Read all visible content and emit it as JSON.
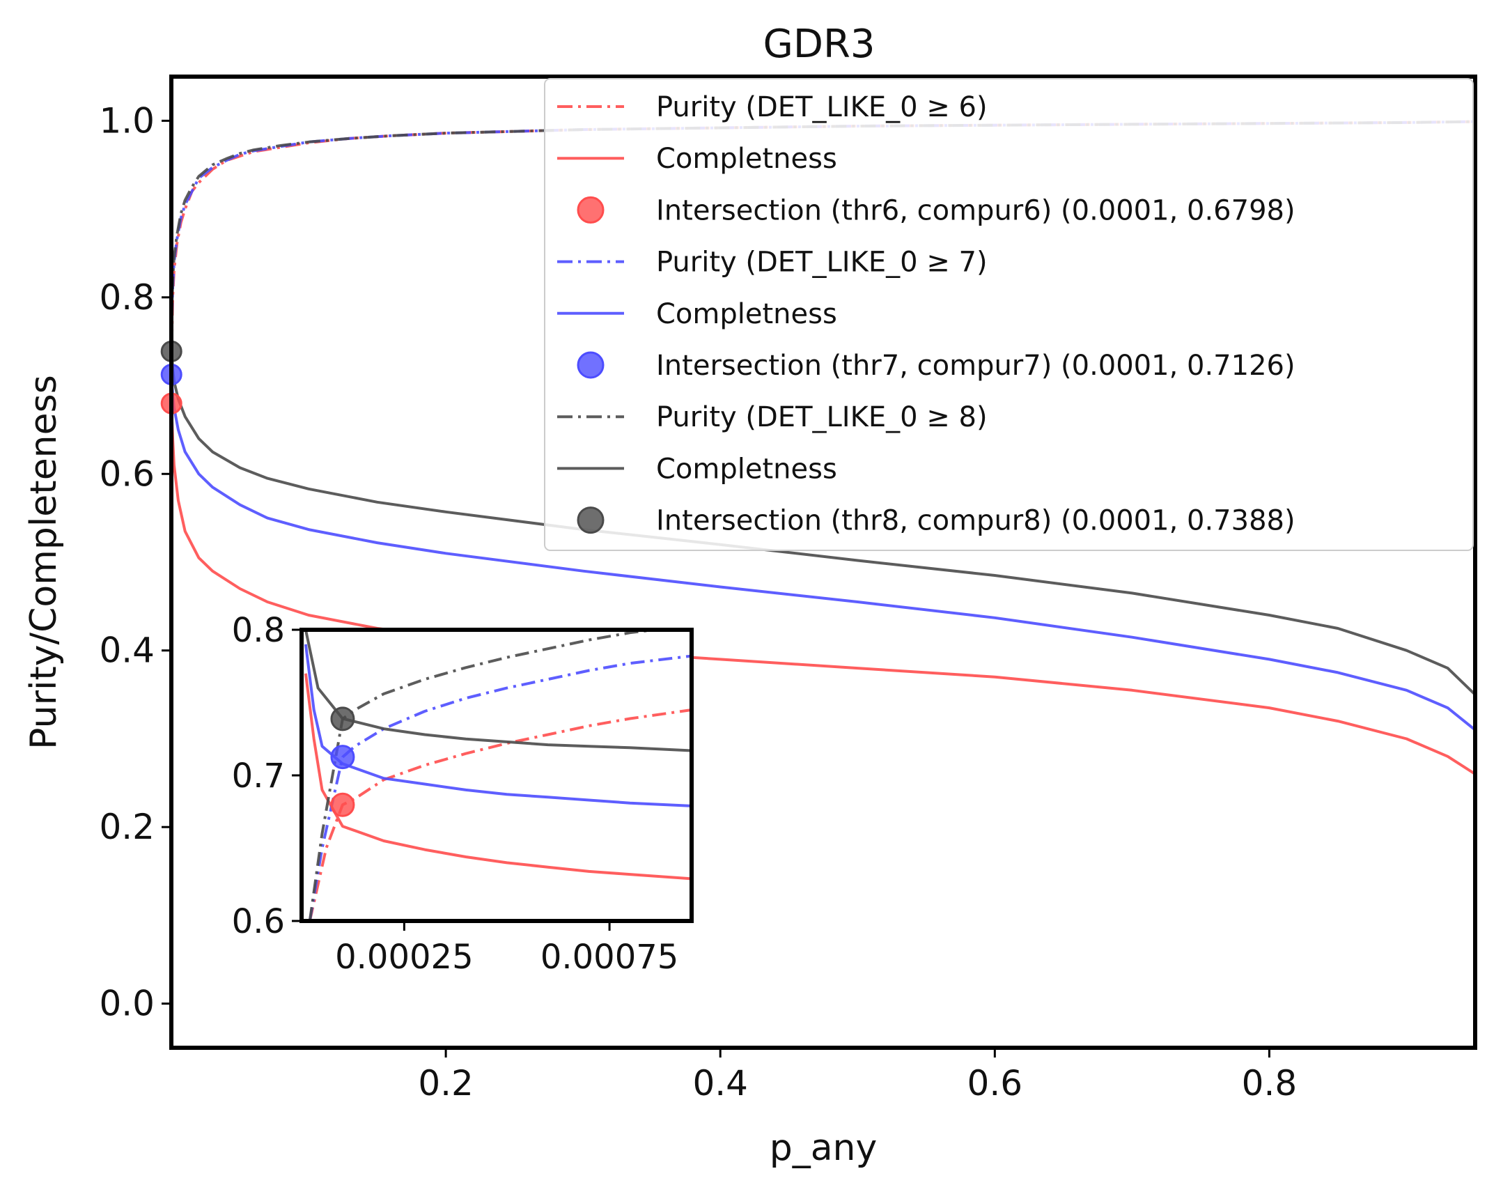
{
  "chart_data": {
    "type": "line",
    "title": "GDR3",
    "xlabel": "p_any",
    "ylabel": "Purity/Completeness",
    "xlim": [
      0.0,
      0.95
    ],
    "ylim": [
      -0.05,
      1.05
    ],
    "xticks": [
      0.2,
      0.4,
      0.6,
      0.8
    ],
    "xtick_labels": [
      "0.2",
      "0.4",
      "0.6",
      "0.8"
    ],
    "yticks": [
      0.0,
      0.2,
      0.4,
      0.6,
      0.8,
      1.0
    ],
    "ytick_labels": [
      "0.0",
      "0.2",
      "0.4",
      "0.6",
      "0.8",
      "1.0"
    ],
    "grid": false,
    "legend_position": "top-right",
    "colors": {
      "thr6": "#ff4d4d",
      "thr7": "#4d4dff",
      "thr8": "#4a4a4a"
    },
    "series": [
      {
        "name": "Purity (DET_LIKE_0 ≥ 6)",
        "group": "thr6",
        "style": "dashdot",
        "x": [
          0.0001,
          0.0003,
          0.0006,
          0.001,
          0.002,
          0.004,
          0.007,
          0.01,
          0.015,
          0.02,
          0.03,
          0.04,
          0.05,
          0.06,
          0.08,
          0.1,
          0.13,
          0.16,
          0.2,
          0.25,
          0.3,
          0.4,
          0.5,
          0.6,
          0.7,
          0.8,
          0.9,
          0.95
        ],
        "y": [
          0.68,
          0.74,
          0.77,
          0.8,
          0.83,
          0.86,
          0.885,
          0.9,
          0.92,
          0.93,
          0.945,
          0.955,
          0.96,
          0.965,
          0.97,
          0.975,
          0.98,
          0.983,
          0.986,
          0.988,
          0.99,
          0.992,
          0.994,
          0.995,
          0.996,
          0.997,
          0.998,
          0.999
        ]
      },
      {
        "name": "Completness",
        "group": "thr6",
        "style": "solid",
        "x": [
          0.0,
          0.001,
          0.002,
          0.005,
          0.01,
          0.02,
          0.03,
          0.05,
          0.07,
          0.1,
          0.15,
          0.2,
          0.3,
          0.4,
          0.5,
          0.6,
          0.7,
          0.8,
          0.85,
          0.9,
          0.93,
          0.95
        ],
        "y": [
          0.68,
          0.64,
          0.61,
          0.57,
          0.535,
          0.505,
          0.49,
          0.47,
          0.455,
          0.44,
          0.425,
          0.415,
          0.4,
          0.39,
          0.38,
          0.37,
          0.355,
          0.335,
          0.32,
          0.3,
          0.28,
          0.26
        ]
      },
      {
        "name": "Purity (DET_LIKE_0 ≥ 7)",
        "group": "thr7",
        "style": "dashdot",
        "x": [
          0.0001,
          0.0003,
          0.0006,
          0.001,
          0.002,
          0.004,
          0.007,
          0.01,
          0.015,
          0.02,
          0.03,
          0.04,
          0.05,
          0.06,
          0.08,
          0.1,
          0.13,
          0.16,
          0.2,
          0.25,
          0.3,
          0.4,
          0.5,
          0.6,
          0.7,
          0.8,
          0.9,
          0.95
        ],
        "y": [
          0.71,
          0.76,
          0.79,
          0.81,
          0.84,
          0.865,
          0.89,
          0.905,
          0.92,
          0.935,
          0.947,
          0.955,
          0.962,
          0.966,
          0.971,
          0.976,
          0.98,
          0.983,
          0.986,
          0.988,
          0.99,
          0.992,
          0.994,
          0.995,
          0.996,
          0.997,
          0.998,
          0.999
        ]
      },
      {
        "name": "Completness",
        "group": "thr7",
        "style": "solid",
        "x": [
          0.0,
          0.001,
          0.002,
          0.005,
          0.01,
          0.02,
          0.03,
          0.05,
          0.07,
          0.1,
          0.15,
          0.2,
          0.3,
          0.4,
          0.5,
          0.6,
          0.7,
          0.8,
          0.85,
          0.9,
          0.93,
          0.95
        ],
        "y": [
          0.71,
          0.69,
          0.675,
          0.65,
          0.625,
          0.6,
          0.585,
          0.565,
          0.55,
          0.537,
          0.522,
          0.51,
          0.49,
          0.472,
          0.455,
          0.437,
          0.415,
          0.39,
          0.375,
          0.355,
          0.335,
          0.31
        ]
      },
      {
        "name": "Purity (DET_LIKE_0 ≥ 8)",
        "group": "thr8",
        "style": "dashdot",
        "x": [
          0.0001,
          0.0003,
          0.0006,
          0.001,
          0.002,
          0.004,
          0.007,
          0.01,
          0.015,
          0.02,
          0.03,
          0.04,
          0.05,
          0.06,
          0.08,
          0.1,
          0.13,
          0.16,
          0.2,
          0.25,
          0.3,
          0.4,
          0.5,
          0.6,
          0.7,
          0.8,
          0.9,
          0.95
        ],
        "y": [
          0.74,
          0.77,
          0.8,
          0.82,
          0.845,
          0.87,
          0.895,
          0.91,
          0.925,
          0.937,
          0.95,
          0.957,
          0.963,
          0.967,
          0.972,
          0.976,
          0.98,
          0.983,
          0.986,
          0.988,
          0.99,
          0.992,
          0.994,
          0.995,
          0.996,
          0.997,
          0.998,
          0.999
        ]
      },
      {
        "name": "Completness",
        "group": "thr8",
        "style": "solid",
        "x": [
          0.0,
          0.001,
          0.002,
          0.005,
          0.01,
          0.02,
          0.03,
          0.05,
          0.07,
          0.1,
          0.15,
          0.2,
          0.3,
          0.4,
          0.5,
          0.6,
          0.7,
          0.8,
          0.85,
          0.9,
          0.93,
          0.95
        ],
        "y": [
          0.74,
          0.72,
          0.705,
          0.685,
          0.665,
          0.64,
          0.625,
          0.607,
          0.595,
          0.583,
          0.568,
          0.557,
          0.537,
          0.52,
          0.502,
          0.485,
          0.465,
          0.44,
          0.425,
          0.4,
          0.38,
          0.35
        ]
      }
    ],
    "intersections": [
      {
        "name": "Intersection (thr6, compur6) (0.0001, 0.6798)",
        "group": "thr6",
        "x": 0.0001,
        "y": 0.6798
      },
      {
        "name": "Intersection (thr7, compur7) (0.0001, 0.7126)",
        "group": "thr7",
        "x": 0.0001,
        "y": 0.7126
      },
      {
        "name": "Intersection (thr8, compur8) (0.0001, 0.7388)",
        "group": "thr8",
        "x": 0.0001,
        "y": 0.7388
      }
    ],
    "legend": [
      {
        "label": "Purity (DET_LIKE_0 ≥ 6)",
        "group": "thr6",
        "kind": "dashdot"
      },
      {
        "label": "Completness",
        "group": "thr6",
        "kind": "solid"
      },
      {
        "label": "Intersection (thr6, compur6) (0.0001, 0.6798)",
        "group": "thr6",
        "kind": "marker"
      },
      {
        "label": "Purity (DET_LIKE_0 ≥ 7)",
        "group": "thr7",
        "kind": "dashdot"
      },
      {
        "label": "Completness",
        "group": "thr7",
        "kind": "solid"
      },
      {
        "label": "Intersection (thr7, compur7) (0.0001, 0.7126)",
        "group": "thr7",
        "kind": "marker"
      },
      {
        "label": "Purity (DET_LIKE_0 ≥ 8)",
        "group": "thr8",
        "kind": "dashdot"
      },
      {
        "label": "Completness",
        "group": "thr8",
        "kind": "solid"
      },
      {
        "label": "Intersection (thr8, compur8) (0.0001, 0.7388)",
        "group": "thr8",
        "kind": "marker"
      }
    ],
    "inset": {
      "xlim": [
        0.0,
        0.00095
      ],
      "ylim": [
        0.6,
        0.8
      ],
      "xticks": [
        0.00025,
        0.00075
      ],
      "xtick_labels": [
        "0.00025",
        "0.00075"
      ],
      "yticks": [
        0.6,
        0.7,
        0.8
      ],
      "ytick_labels": [
        "0.6",
        "0.7",
        "0.8"
      ],
      "series": [
        {
          "group": "thr6",
          "style": "dashdot",
          "x": [
            2e-05,
            6e-05,
            0.0001,
            0.00013,
            0.0002,
            0.0003,
            0.0004,
            0.0005,
            0.0006,
            0.0007,
            0.0008,
            0.00095
          ],
          "y": [
            0.6,
            0.65,
            0.6798,
            0.684,
            0.697,
            0.707,
            0.715,
            0.722,
            0.728,
            0.734,
            0.739,
            0.745
          ]
        },
        {
          "group": "thr6",
          "style": "solid",
          "x": [
            1e-05,
            3e-05,
            5e-05,
            0.0001,
            0.0002,
            0.0003,
            0.0004,
            0.0005,
            0.0006,
            0.0007,
            0.0008,
            0.00095
          ],
          "y": [
            0.77,
            0.725,
            0.69,
            0.665,
            0.655,
            0.649,
            0.644,
            0.64,
            0.637,
            0.634,
            0.632,
            0.629
          ]
        },
        {
          "group": "thr7",
          "style": "dashdot",
          "x": [
            2e-05,
            5e-05,
            0.0001,
            0.00013,
            0.0002,
            0.0003,
            0.0004,
            0.0005,
            0.0006,
            0.0007,
            0.0008,
            0.00095
          ],
          "y": [
            0.6,
            0.65,
            0.7126,
            0.72,
            0.732,
            0.744,
            0.753,
            0.76,
            0.766,
            0.772,
            0.777,
            0.782
          ]
        },
        {
          "group": "thr7",
          "style": "solid",
          "x": [
            1e-05,
            3e-05,
            5e-05,
            0.0001,
            0.0002,
            0.0003,
            0.0004,
            0.0005,
            0.0006,
            0.0007,
            0.0008,
            0.00095
          ],
          "y": [
            0.79,
            0.745,
            0.72,
            0.708,
            0.698,
            0.694,
            0.69,
            0.687,
            0.685,
            0.683,
            0.681,
            0.679
          ]
        },
        {
          "group": "thr8",
          "style": "dashdot",
          "x": [
            2e-05,
            5e-05,
            0.0001,
            0.00013,
            0.0002,
            0.0003,
            0.0004,
            0.0005,
            0.0006,
            0.0007,
            0.0008,
            0.00095
          ],
          "y": [
            0.6,
            0.66,
            0.7388,
            0.745,
            0.756,
            0.766,
            0.774,
            0.781,
            0.787,
            0.793,
            0.798,
            0.803
          ]
        },
        {
          "group": "thr8",
          "style": "solid",
          "x": [
            1e-05,
            4e-05,
            0.0001,
            0.0002,
            0.0003,
            0.0004,
            0.0005,
            0.0006,
            0.0007,
            0.0008,
            0.00095
          ],
          "y": [
            0.8,
            0.76,
            0.739,
            0.732,
            0.728,
            0.725,
            0.723,
            0.721,
            0.72,
            0.719,
            0.717
          ]
        }
      ],
      "intersections": [
        {
          "group": "thr6",
          "x": 0.0001,
          "y": 0.6798
        },
        {
          "group": "thr7",
          "x": 0.0001,
          "y": 0.7126
        },
        {
          "group": "thr8",
          "x": 0.0001,
          "y": 0.7388
        }
      ]
    }
  }
}
